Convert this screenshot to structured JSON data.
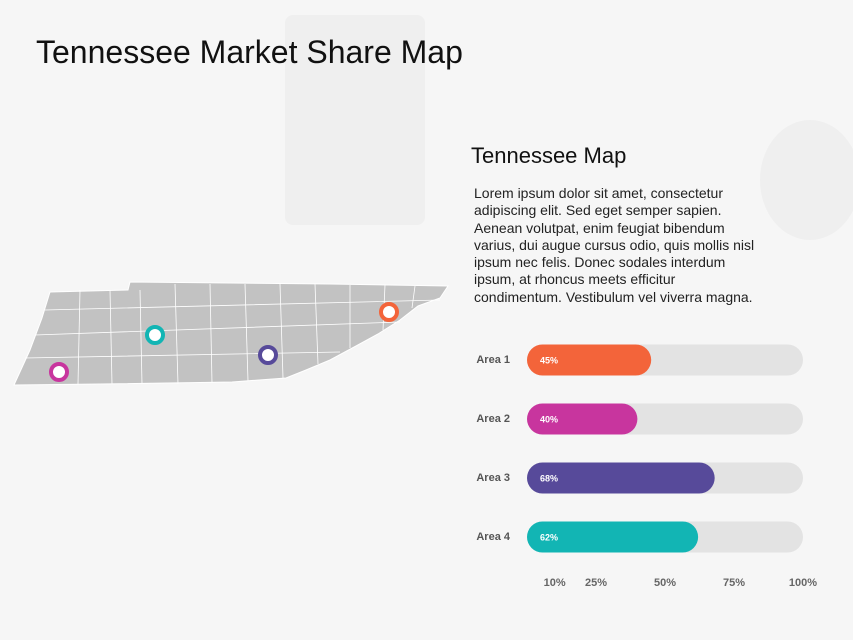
{
  "header": {
    "title": "Tennessee Market Share Map"
  },
  "panel": {
    "heading": "Tennessee Map",
    "paragraph": [
      "Lorem ipsum dolor sit amet, consectetur",
      "adipiscing elit. Sed eget semper sapien.",
      "Aenean volutpat, enim feugiat bibendum",
      "varius, dui augue cursus odio, quis mollis nisl",
      "ipsum nec felis. Donec sodales interdum",
      "ipsum, at rhoncus meets efficitur",
      "condimentum. Vestibulum vel viverra magna."
    ]
  },
  "chart_data": {
    "type": "hbar",
    "categories": [
      "Area 1",
      "Area 2",
      "Area 3",
      "Area 4"
    ],
    "values": [
      45,
      40,
      68,
      62
    ],
    "value_labels": [
      "45%",
      "40%",
      "68%",
      "62%"
    ],
    "colors": [
      "#f3643a",
      "#c8359e",
      "#574a9a",
      "#12b5b4"
    ],
    "track_color": "#e3e3e3",
    "xlim": [
      0,
      100
    ],
    "xticks": [
      {
        "value": 10,
        "label": "10%"
      },
      {
        "value": 25,
        "label": "25%"
      },
      {
        "value": 50,
        "label": "50%"
      },
      {
        "value": 75,
        "label": "75%"
      },
      {
        "value": 100,
        "label": "100%"
      }
    ],
    "grid": false
  }
}
